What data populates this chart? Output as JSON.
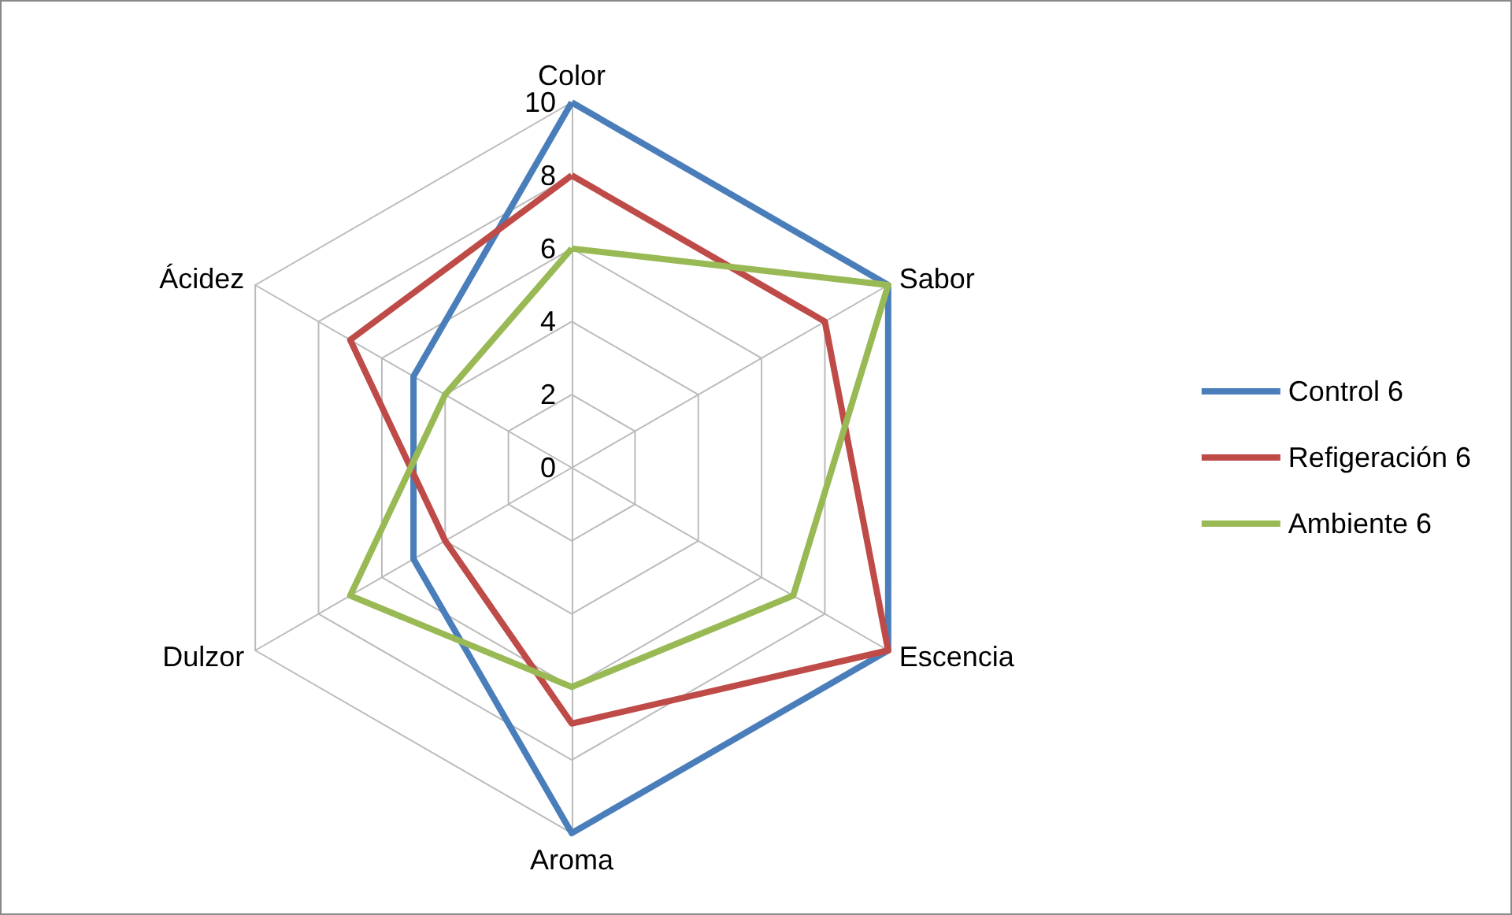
{
  "chart_data": {
    "type": "radar",
    "categories": [
      "Color",
      "Sabor",
      "Escencia",
      "Aroma",
      "Dulzor",
      "Ácidez"
    ],
    "series": [
      {
        "name": "Control 6",
        "color": "#4a7ebb",
        "values": [
          10,
          10,
          10,
          10,
          5,
          5
        ]
      },
      {
        "name": "Refigeración 6",
        "color": "#be4b48",
        "values": [
          8,
          8,
          10,
          7,
          4,
          7
        ]
      },
      {
        "name": "Ambiente 6",
        "color": "#98b954",
        "values": [
          6,
          10,
          7,
          6,
          7,
          4
        ]
      }
    ],
    "ylim": [
      0,
      10
    ],
    "yticks": [
      0,
      2,
      4,
      6,
      8,
      10
    ],
    "grid": true,
    "legend": "right",
    "marker": "none",
    "line_style": "solid"
  }
}
